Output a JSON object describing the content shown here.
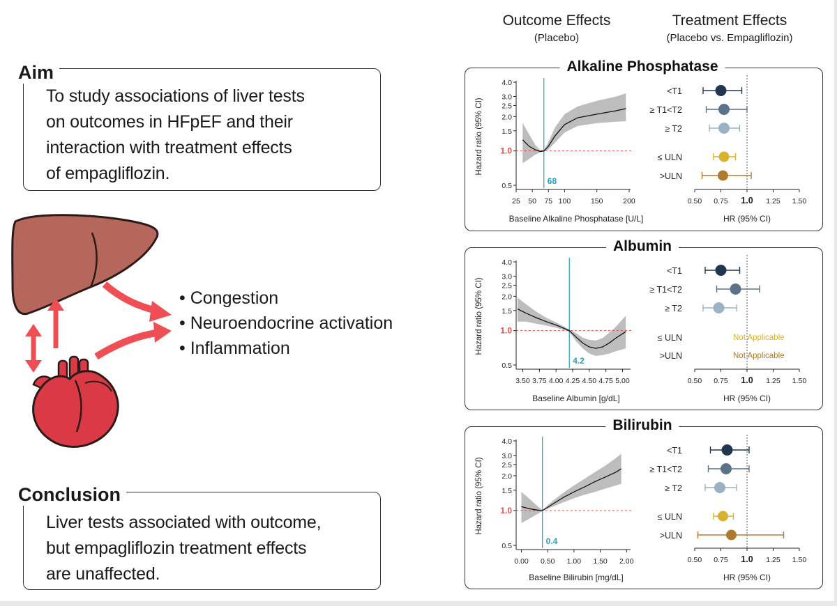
{
  "aim": {
    "title": "Aim",
    "lines": [
      "To study associations of liver tests",
      "on outcomes in HFpEF and their",
      "interaction with treatment effects",
      "of empagliflozin."
    ]
  },
  "mechanisms": [
    "Congestion",
    "Neuroendocrine activation",
    "Inflammation"
  ],
  "conclusion": {
    "title": "Conclusion",
    "lines": [
      "Liver tests associated with outcome,",
      "but empagliflozin treatment effects",
      "are unaffected."
    ]
  },
  "headers": {
    "outcome_title": "Outcome Effects",
    "outcome_sub": "(Placebo)",
    "treatment_title": "Treatment Effects",
    "treatment_sub": "(Placebo vs. Empagliflozin)"
  },
  "colors": {
    "t1": "#1f3550",
    "t1t2": "#5b7388",
    "t2": "#9bb2c2",
    "le_uln": "#d8b22c",
    "gt_uln": "#b07a2e",
    "cutoff": "#2a9fbf",
    "reference": "#d9534f",
    "arrow": "#ef4e55"
  },
  "chart_data": [
    {
      "type": "line",
      "title": "Alkaline Phosphatase",
      "xlabel": "Baseline Alkaline Phosphatase [U/L]",
      "ylabel": "Hazard ratio (95% CI)",
      "xlim": [
        25,
        200
      ],
      "ylim": [
        0.5,
        4.0
      ],
      "x_ticks": [
        25,
        50,
        75,
        100,
        150,
        200
      ],
      "x_tick_labels": [
        "25",
        "50",
        "75",
        "100",
        "150",
        "200"
      ],
      "y_ticks": [
        0.5,
        1.0,
        1.5,
        2.0,
        2.5,
        3.0,
        4.0
      ],
      "y_tick_labels": [
        "0.5",
        "1.0",
        "1.5",
        "2.0",
        "2.5",
        "3.0",
        "4.0"
      ],
      "cutoff": 68,
      "cutoff_label": "68",
      "curve": {
        "x": [
          35,
          45,
          55,
          62,
          68,
          75,
          85,
          100,
          120,
          150,
          180,
          195
        ],
        "y": [
          1.25,
          1.1,
          1.02,
          0.99,
          1.0,
          1.1,
          1.35,
          1.7,
          1.95,
          2.1,
          2.25,
          2.35
        ]
      },
      "band_lower": [
        0.78,
        0.85,
        0.93,
        0.97,
        0.99,
        1.03,
        1.18,
        1.45,
        1.65,
        1.75,
        1.8,
        1.82
      ],
      "band_upper": [
        1.75,
        1.4,
        1.12,
        1.02,
        1.01,
        1.2,
        1.6,
        2.1,
        2.45,
        2.75,
        3.0,
        3.2
      ]
    },
    {
      "type": "line",
      "title": "Albumin",
      "xlabel": "Baseline Albumin [g/dL]",
      "ylabel": "Hazard ratio (95% CI)",
      "xlim": [
        3.4,
        5.1
      ],
      "ylim": [
        0.5,
        4.0
      ],
      "x_ticks": [
        3.5,
        3.75,
        4.0,
        4.25,
        4.5,
        4.75,
        5.0
      ],
      "x_tick_labels": [
        "3.50",
        "3.75",
        "4.00",
        "4.25",
        "4.50",
        "4.75",
        "5.00"
      ],
      "y_ticks": [
        0.5,
        1.0,
        1.5,
        2.0,
        2.5,
        3.0,
        4.0
      ],
      "y_tick_labels": [
        "0.5",
        "1.0",
        "1.5",
        "2.0",
        "2.5",
        "3.0",
        "4.0"
      ],
      "cutoff": 4.2,
      "cutoff_label": "4.2",
      "curve": {
        "x": [
          3.42,
          3.55,
          3.7,
          3.85,
          4.0,
          4.1,
          4.2,
          4.3,
          4.4,
          4.5,
          4.6,
          4.7,
          4.8,
          4.9,
          5.05
        ],
        "y": [
          1.55,
          1.42,
          1.3,
          1.2,
          1.12,
          1.06,
          1.0,
          0.88,
          0.78,
          0.72,
          0.7,
          0.72,
          0.78,
          0.86,
          0.98
        ]
      },
      "band_lower": [
        1.2,
        1.2,
        1.15,
        1.11,
        1.06,
        1.02,
        0.98,
        0.81,
        0.7,
        0.63,
        0.6,
        0.61,
        0.63,
        0.66,
        0.7
      ],
      "band_upper": [
        1.95,
        1.7,
        1.47,
        1.3,
        1.18,
        1.1,
        1.02,
        0.95,
        0.87,
        0.83,
        0.82,
        0.86,
        0.96,
        1.08,
        1.35
      ]
    },
    {
      "type": "line",
      "title": "Bilirubin",
      "xlabel": "Baseline Bilirubin [mg/dL]",
      "ylabel": "Hazard ratio (95% CI)",
      "xlim": [
        -0.1,
        2.05
      ],
      "ylim": [
        0.5,
        4.0
      ],
      "x_ticks": [
        0,
        0.5,
        1.0,
        1.5,
        2.0
      ],
      "x_tick_labels": [
        "0.00",
        "0.50",
        "1.00",
        "1.50",
        "2.00"
      ],
      "y_ticks": [
        0.5,
        1.0,
        1.5,
        2.0,
        2.5,
        3.0,
        4.0
      ],
      "y_tick_labels": [
        "0.5",
        "1.0",
        "1.5",
        "2.0",
        "2.5",
        "3.0",
        "4.0"
      ],
      "cutoff": 0.4,
      "cutoff_label": "0.4",
      "curve": {
        "x": [
          0.0,
          0.15,
          0.3,
          0.4,
          0.6,
          0.8,
          1.0,
          1.2,
          1.4,
          1.6,
          1.8,
          1.9
        ],
        "y": [
          1.08,
          1.04,
          1.01,
          1.0,
          1.14,
          1.3,
          1.45,
          1.6,
          1.78,
          1.95,
          2.15,
          2.3
        ]
      },
      "band_lower": [
        0.78,
        0.85,
        0.93,
        0.99,
        1.08,
        1.18,
        1.28,
        1.37,
        1.45,
        1.55,
        1.65,
        1.7
      ],
      "band_upper": [
        1.45,
        1.27,
        1.1,
        1.01,
        1.22,
        1.43,
        1.65,
        1.88,
        2.15,
        2.45,
        2.85,
        3.1
      ]
    },
    {
      "type": "scatter",
      "title": "Alkaline Phosphatase treatment effects",
      "xlabel": "HR (95% CI)",
      "xlim": [
        0.5,
        1.5
      ],
      "x_ticks": [
        0.5,
        0.75,
        1.0,
        1.25,
        1.5
      ],
      "x_tick_labels": [
        "0.50",
        "0.75",
        "1.0",
        "1.25",
        "1.50"
      ],
      "reference": 1.0,
      "rows": [
        {
          "label": "<T1",
          "hr": 0.75,
          "lo": 0.58,
          "hi": 0.95,
          "color_key": "t1",
          "na_text": null
        },
        {
          "label": "≥ T1<T2",
          "hr": 0.78,
          "lo": 0.61,
          "hi": 1.0,
          "color_key": "t1t2",
          "na_text": null
        },
        {
          "label": "≥ T2",
          "hr": 0.78,
          "lo": 0.64,
          "hi": 0.93,
          "color_key": "t2",
          "na_text": null
        },
        {
          "label": "≤ ULN",
          "hr": 0.78,
          "lo": 0.68,
          "hi": 0.89,
          "color_key": "le_uln",
          "na_text": null
        },
        {
          "label": ">ULN",
          "hr": 0.77,
          "lo": 0.57,
          "hi": 1.04,
          "color_key": "gt_uln",
          "na_text": null
        }
      ]
    },
    {
      "type": "scatter",
      "title": "Albumin treatment effects",
      "xlabel": "HR (95% CI)",
      "xlim": [
        0.5,
        1.5
      ],
      "x_ticks": [
        0.5,
        0.75,
        1.0,
        1.25,
        1.5
      ],
      "x_tick_labels": [
        "0.50",
        "0.75",
        "1.0",
        "1.25",
        "1.50"
      ],
      "reference": 1.0,
      "rows": [
        {
          "label": "<T1",
          "hr": 0.75,
          "lo": 0.6,
          "hi": 0.93,
          "color_key": "t1",
          "na_text": null
        },
        {
          "label": "≥ T1<T2",
          "hr": 0.89,
          "lo": 0.71,
          "hi": 1.12,
          "color_key": "t1t2",
          "na_text": null
        },
        {
          "label": "≥ T2",
          "hr": 0.73,
          "lo": 0.58,
          "hi": 0.9,
          "color_key": "t2",
          "na_text": null
        },
        {
          "label": "≤ ULN",
          "hr": null,
          "lo": null,
          "hi": null,
          "color_key": "le_uln",
          "na_text": "Not Applicable"
        },
        {
          "label": ">ULN",
          "hr": null,
          "lo": null,
          "hi": null,
          "color_key": "gt_uln",
          "na_text": "Not Applicable"
        }
      ]
    },
    {
      "type": "scatter",
      "title": "Bilirubin treatment effects",
      "xlabel": "HR (95% CI)",
      "xlim": [
        0.5,
        1.5
      ],
      "x_ticks": [
        0.5,
        0.75,
        1.0,
        1.25,
        1.5
      ],
      "x_tick_labels": [
        "0.50",
        "0.75",
        "1.0",
        "1.25",
        "1.50"
      ],
      "reference": 1.0,
      "rows": [
        {
          "label": "<T1",
          "hr": 0.81,
          "lo": 0.65,
          "hi": 1.02,
          "color_key": "t1",
          "na_text": null
        },
        {
          "label": "≥ T1<T2",
          "hr": 0.8,
          "lo": 0.63,
          "hi": 1.02,
          "color_key": "t1t2",
          "na_text": null
        },
        {
          "label": "≥ T2",
          "hr": 0.74,
          "lo": 0.6,
          "hi": 0.9,
          "color_key": "t2",
          "na_text": null
        },
        {
          "label": "≤ ULN",
          "hr": 0.77,
          "lo": 0.68,
          "hi": 0.87,
          "color_key": "le_uln",
          "na_text": null
        },
        {
          "label": ">ULN",
          "hr": 0.85,
          "lo": 0.53,
          "hi": 1.35,
          "color_key": "gt_uln",
          "na_text": null
        }
      ]
    }
  ]
}
